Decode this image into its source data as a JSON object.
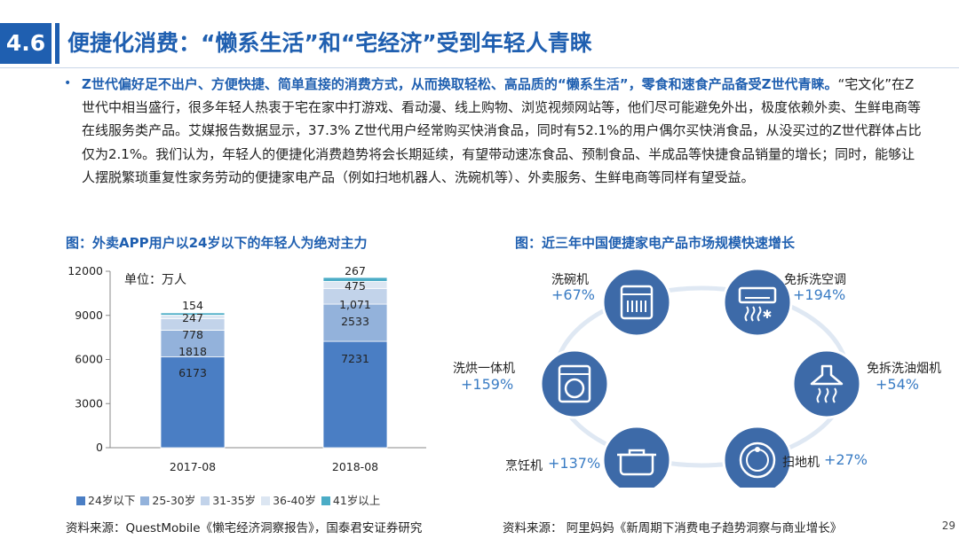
{
  "header": {
    "section_number": "4.6",
    "title": "便捷化消费：“懒系生活”和“宅经济”受到年轻人青睐"
  },
  "paragraph": {
    "bullet": "•",
    "highlight": "Z世代偏好足不出户、方便快捷、简单直接的消费方式，从而换取轻松、高品质的“懒系生活”，零食和速食产品备受Z世代青睐。",
    "body": "“宅文化”在Z世代中相当盛行，很多年轻人热衷于宅在家中打游戏、看动漫、线上购物、浏览视频网站等，他们尽可能避免外出，极度依赖外卖、生鲜电商等在线服务类产品。艾媒报告数据显示，37.3% Z世代用户经常购买快消食品，同时有52.1%的用户偶尔买快消食品，从没买过的Z世代群体占比仅为2.1%。我们认为，年轻人的便捷化消费趋势将会长期延续，有望带动速冻食品、预制食品、半成品等快捷食品销量的增长；同时，能够让人摆脱繁琐重复性家务劳动的便捷家电产品（例如扫地机器人、洗碗机等）、外卖服务、生鲜电商等同样有望受益。"
  },
  "left_figure": {
    "title": "图：外卖APP用户以24岁以下的年轻人为绝对主力",
    "unit_label": "单位：万人",
    "source": "资料来源：QuestMobile《懒宅经济洞察报告》，国泰君安证券研究"
  },
  "chart_data": {
    "type": "bar",
    "stacked": true,
    "categories": [
      "2017-08",
      "2018-08"
    ],
    "series": [
      {
        "name": "24岁以下",
        "values": [
          6173,
          7231
        ],
        "labels": [
          "6173",
          "7231"
        ],
        "color": "#4a7ec4"
      },
      {
        "name": "25-30岁",
        "values": [
          1818,
          2533
        ],
        "labels": [
          "1818",
          "2533"
        ],
        "color": "#93b2db"
      },
      {
        "name": "31-35岁",
        "values": [
          778,
          1071
        ],
        "labels": [
          "778",
          "1,071"
        ],
        "color": "#c2d3ea"
      },
      {
        "name": "36-40岁",
        "values": [
          247,
          475
        ],
        "labels": [
          "247",
          "475"
        ],
        "color": "#dce6f2"
      },
      {
        "name": "41岁以上",
        "values": [
          154,
          267
        ],
        "labels": [
          "154",
          "267"
        ],
        "color": "#4bacc6"
      }
    ],
    "ylim": [
      0,
      12000
    ],
    "yticks": [
      "0",
      "3000",
      "6000",
      "9000",
      "12000"
    ],
    "legend_position": "bottom",
    "grid": false
  },
  "right_figure": {
    "title": "图：近三年中国便捷家电产品市场规模快速增长",
    "source": "资料来源： 阿里妈妈《新周期下消费电子趋势洞察与商业增长》",
    "appliances": [
      {
        "label": "洗碗机",
        "pct": "+67%",
        "icon": "dishwasher-icon"
      },
      {
        "label": "免拆洗空调",
        "pct": "+194%",
        "icon": "air-conditioner-icon"
      },
      {
        "label": "免拆洗油烟机",
        "pct": "+54%",
        "icon": "range-hood-icon"
      },
      {
        "label": "扫地机",
        "pct": "+27%",
        "icon": "robot-vacuum-icon"
      },
      {
        "label": "烹饪机",
        "pct": "+137%",
        "icon": "cooking-pot-icon"
      },
      {
        "label": "洗烘一体机",
        "pct": "+159%",
        "icon": "washing-machine-icon"
      }
    ],
    "accent_color": "#3d6aa8"
  },
  "page_number": "29"
}
